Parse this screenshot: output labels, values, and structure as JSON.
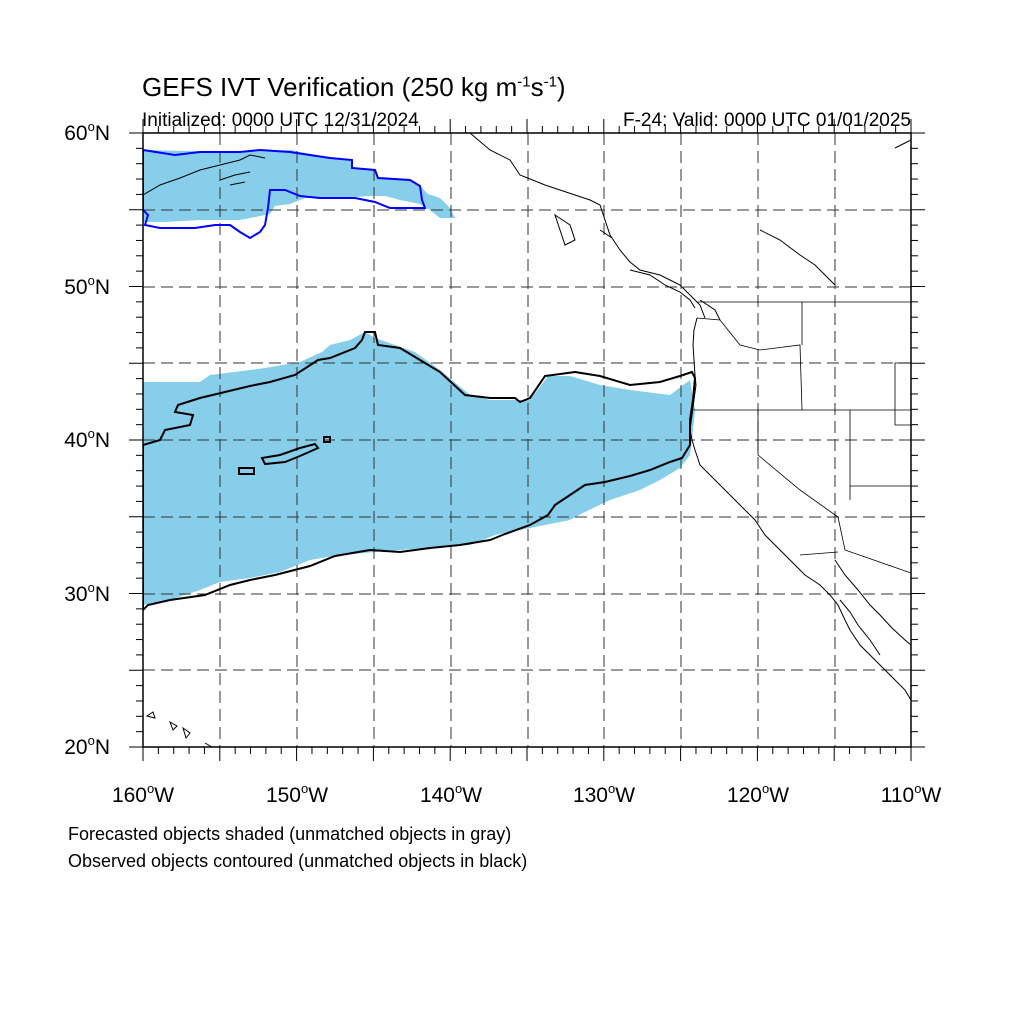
{
  "header": {
    "title_main": "GEFS IVT Verification (250 kg m",
    "title_sup1": "-1",
    "title_mid": "s",
    "title_sup2": "-1",
    "title_end": ")",
    "initialized": "Initialized: 0000 UTC 12/31/2024",
    "valid": "F-24: Valid: 0000 UTC 01/01/2025"
  },
  "axes": {
    "lat_labels": [
      "60",
      "50",
      "40",
      "30",
      "20"
    ],
    "lat_suffix": "N",
    "lon_labels": [
      "160",
      "150",
      "140",
      "130",
      "120",
      "110"
    ],
    "lon_suffix": "W",
    "degree_symbol": "o",
    "lat_range": [
      20,
      60
    ],
    "lon_range": [
      -160,
      -110
    ]
  },
  "legend": {
    "line1": "Forecasted objects shaded (unmatched objects in gray)",
    "line2": "Observed objects contoured (unmatched objects in black)"
  },
  "colors": {
    "forecast_fill": "#87CEEB",
    "observed_matched": "#0000FF",
    "observed_unmatched": "#000000",
    "grid": "#000000"
  }
}
